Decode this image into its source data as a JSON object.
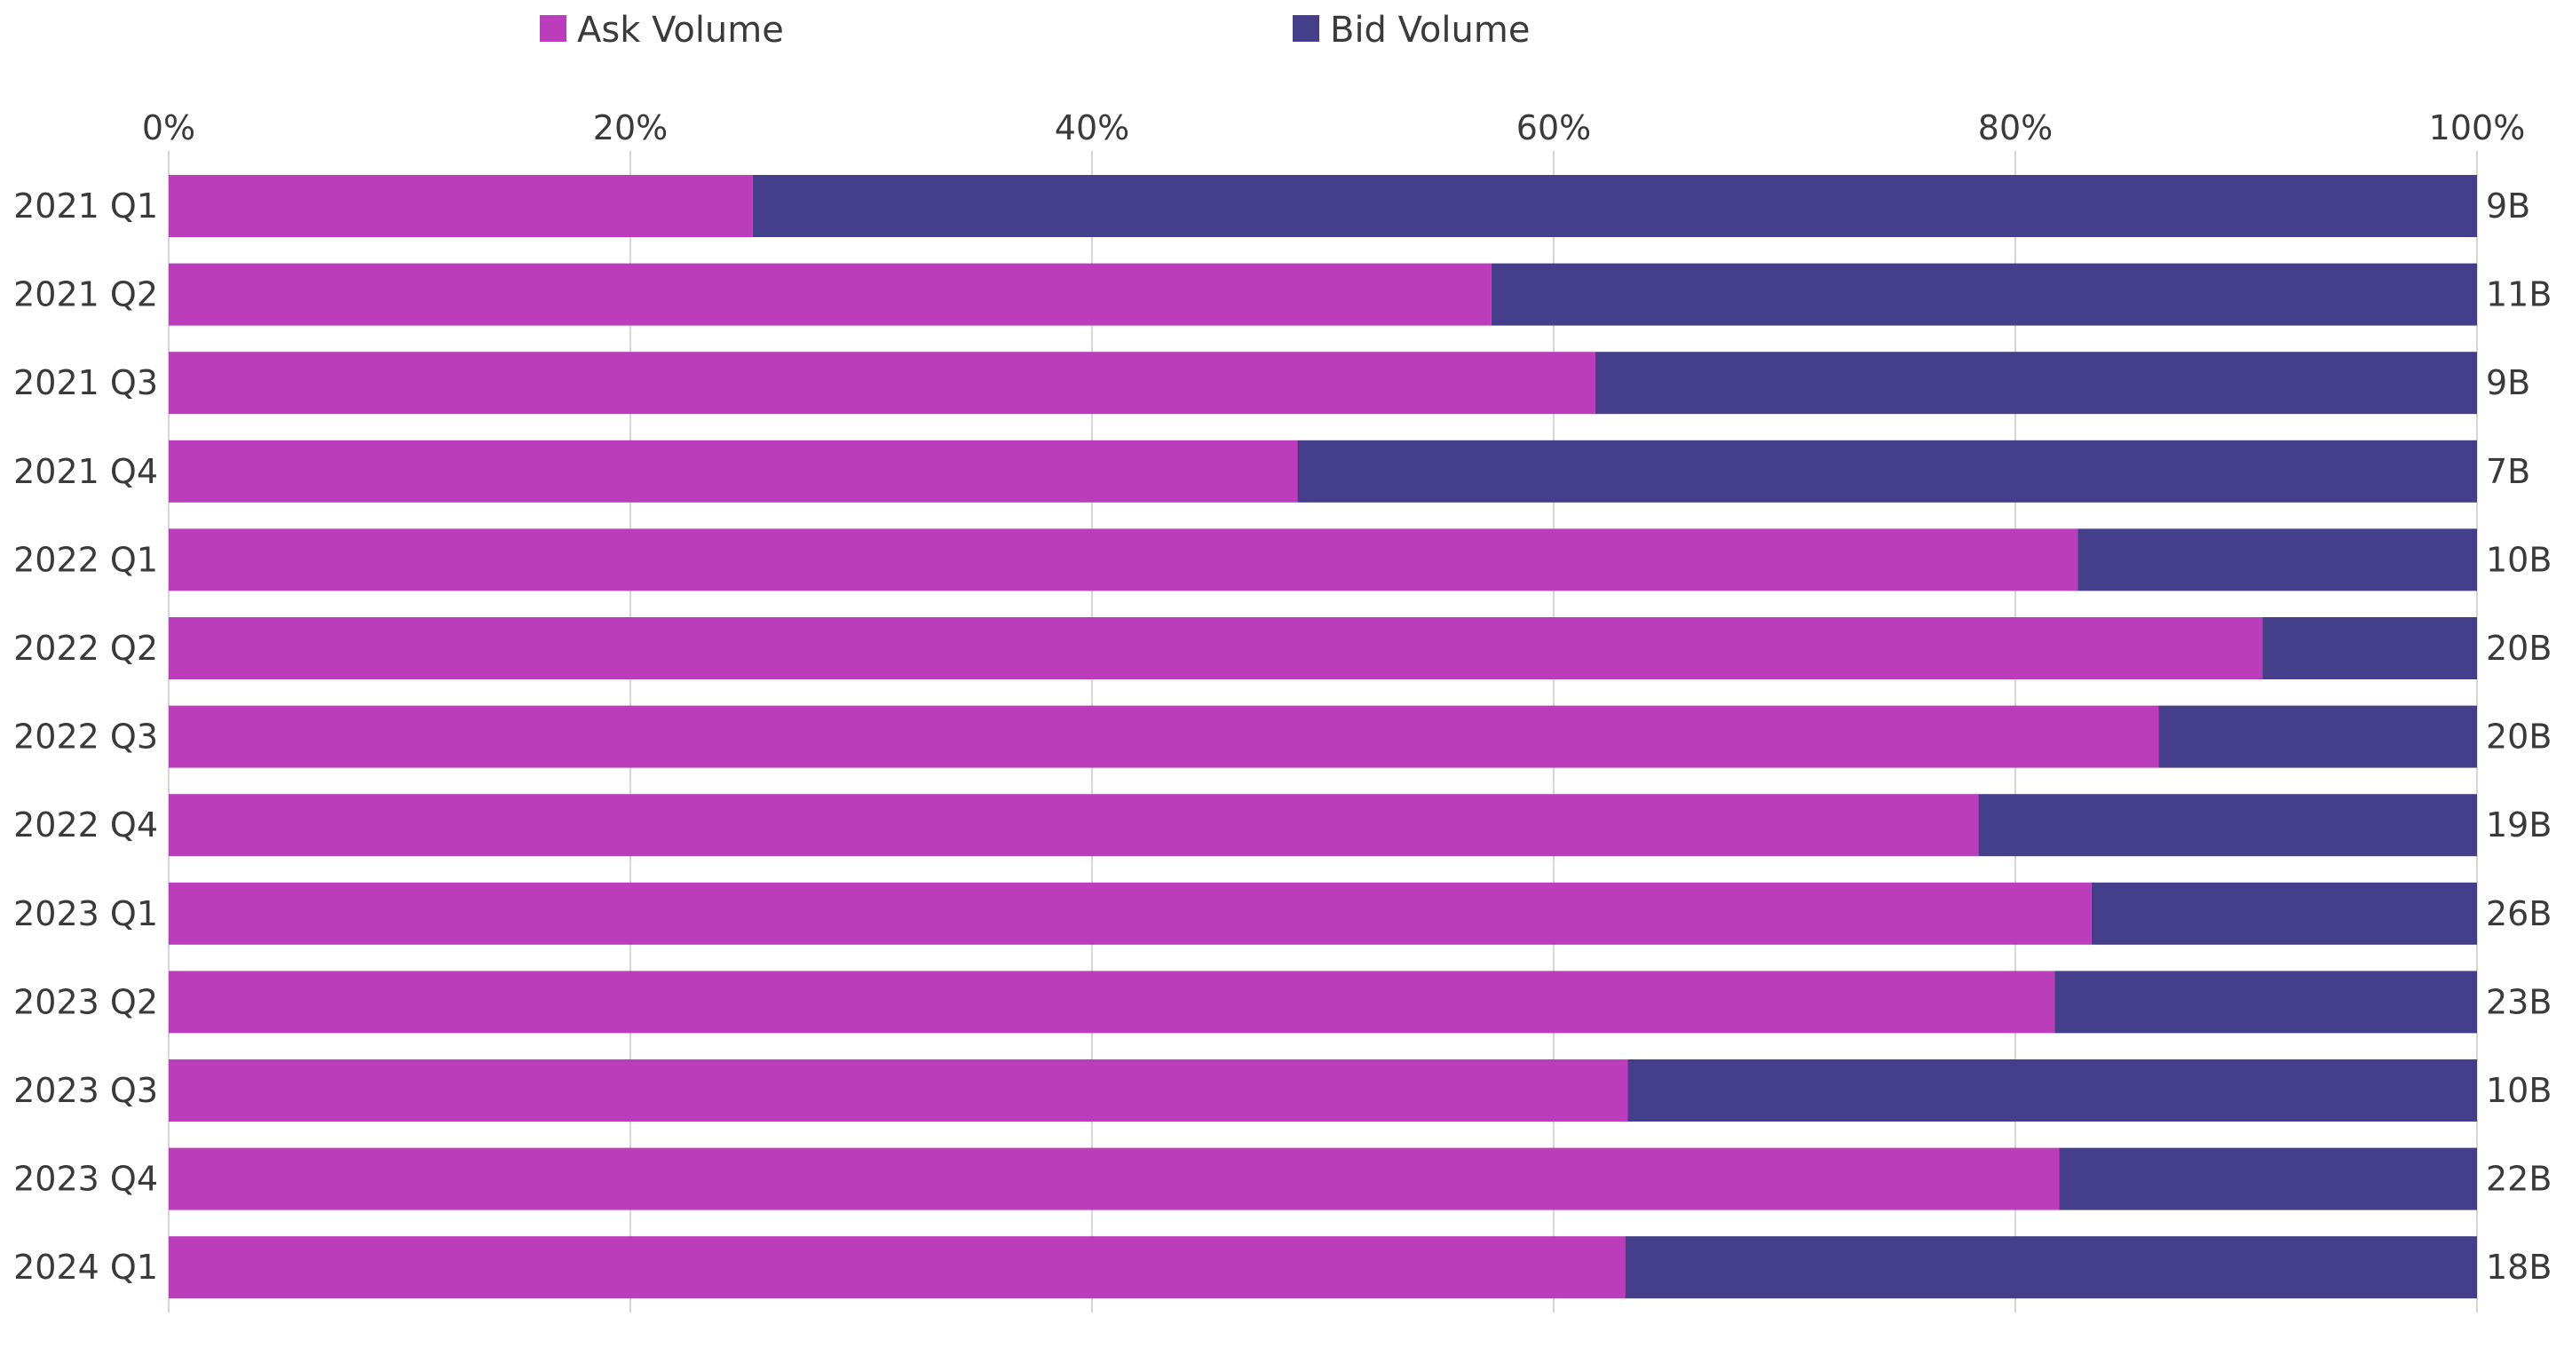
{
  "chart_data": {
    "type": "bar",
    "orientation": "horizontal",
    "stacked": "percent",
    "title": "",
    "xlabel": "",
    "ylabel": "",
    "xlim": [
      0,
      100
    ],
    "x_ticks": [
      "0%",
      "20%",
      "40%",
      "60%",
      "80%",
      "100%"
    ],
    "legend_position": "top",
    "grid": true,
    "categories": [
      "2021 Q1",
      "2021 Q2",
      "2021 Q3",
      "2021 Q4",
      "2022 Q1",
      "2022 Q2",
      "2022 Q3",
      "2022 Q4",
      "2023 Q1",
      "2023 Q2",
      "2023 Q3",
      "2023 Q4",
      "2024 Q1"
    ],
    "series": [
      {
        "name": "Ask Volume",
        "color": "#bb3dbb",
        "values": [
          25.3,
          57.3,
          61.8,
          48.9,
          82.7,
          90.7,
          86.2,
          78.4,
          83.3,
          81.7,
          63.2,
          81.9,
          63.1
        ]
      },
      {
        "name": "Bid Volume",
        "color": "#453e8a",
        "values": [
          74.7,
          42.7,
          38.2,
          51.1,
          17.3,
          9.3,
          13.8,
          21.6,
          16.7,
          18.3,
          36.8,
          18.1,
          36.9
        ]
      }
    ],
    "totals": [
      "9B",
      "11B",
      "9B",
      "7B",
      "10B",
      "20B",
      "20B",
      "19B",
      "26B",
      "23B",
      "10B",
      "22B",
      "18B"
    ]
  }
}
